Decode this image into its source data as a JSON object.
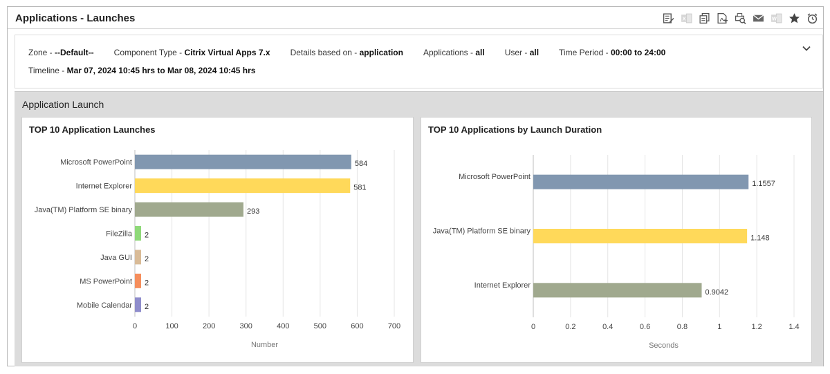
{
  "header": {
    "title": "Applications - Launches",
    "toolbar": [
      {
        "name": "edit-report-icon"
      },
      {
        "name": "excel-export-icon"
      },
      {
        "name": "copy-icon"
      },
      {
        "name": "pdf-export-icon"
      },
      {
        "name": "print-preview-icon"
      },
      {
        "name": "email-icon"
      },
      {
        "name": "word-export-icon"
      },
      {
        "name": "favorite-star-icon"
      },
      {
        "name": "schedule-alarm-icon"
      }
    ]
  },
  "filters": {
    "zone_label": "Zone - ",
    "zone_value": "--Default--",
    "component_label": "Component Type - ",
    "component_value": "Citrix Virtual Apps 7.x",
    "details_label": "Details based on - ",
    "details_value": "application",
    "applications_label": "Applications - ",
    "applications_value": "all",
    "user_label": "User - ",
    "user_value": "all",
    "period_label": "Time Period - ",
    "period_value": "00:00 to 24:00",
    "timeline_label": "Timeline - ",
    "timeline_value": "Mar 07, 2024 10:45 hrs to Mar 08, 2024 10:45 hrs"
  },
  "section": {
    "title": "Application Launch"
  },
  "chart_data": [
    {
      "type": "bar",
      "orientation": "horizontal",
      "title": "TOP 10 Application Launches",
      "xlabel": "Number",
      "categories": [
        "Microsoft PowerPoint",
        "Internet Explorer",
        "Java(TM) Platform SE binary",
        "FileZilla",
        "Java GUI",
        "MS PowerPoint",
        "Mobile Calendar"
      ],
      "values": [
        584,
        581,
        293,
        2,
        2,
        2,
        2
      ],
      "value_labels": [
        "584",
        "581",
        "293",
        "2",
        "2",
        "2",
        "2"
      ],
      "colors": [
        "#8197b0",
        "#ffd95a",
        "#a0a98e",
        "#8fd979",
        "#d9bb97",
        "#f58e5c",
        "#8f8dcc"
      ],
      "xlim": [
        0,
        700
      ],
      "xticks": [
        "0",
        "100",
        "200",
        "300",
        "400",
        "500",
        "600",
        "700"
      ],
      "grid": true
    },
    {
      "type": "bar",
      "orientation": "horizontal",
      "title": "TOP 10 Applications by Launch Duration",
      "xlabel": "Seconds",
      "categories": [
        "Microsoft PowerPoint",
        "Java(TM) Platform SE binary",
        "Internet Explorer"
      ],
      "values": [
        1.1557,
        1.148,
        0.9042
      ],
      "value_labels": [
        "1.1557",
        "1.148",
        "0.9042"
      ],
      "colors": [
        "#8197b0",
        "#ffd95a",
        "#a0a98e"
      ],
      "xlim": [
        0,
        1.4
      ],
      "xticks": [
        "0",
        "0.2",
        "0.4",
        "0.6",
        "0.8",
        "1",
        "1.2",
        "1.4"
      ],
      "grid": true
    }
  ]
}
